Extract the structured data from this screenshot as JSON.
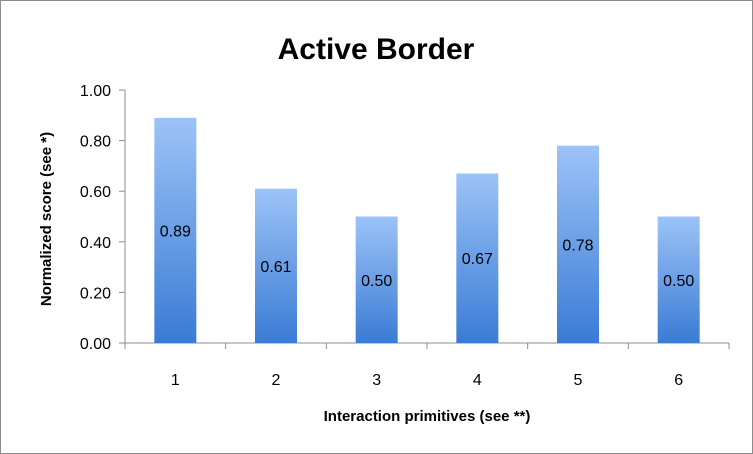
{
  "chart_data": {
    "type": "bar",
    "title": "Active Border",
    "xlabel": "Interaction primitives (see **)",
    "ylabel": "Normalized score (see *)",
    "categories": [
      "1",
      "2",
      "3",
      "4",
      "5",
      "6"
    ],
    "values": [
      0.89,
      0.61,
      0.5,
      0.67,
      0.78,
      0.5
    ],
    "data_labels": [
      "0.89",
      "0.61",
      "0.50",
      "0.67",
      "0.78",
      "0.50"
    ],
    "ylim": [
      0,
      1
    ],
    "yticks": [
      "0.00",
      "0.20",
      "0.40",
      "0.60",
      "0.80",
      "1.00"
    ],
    "grid": false,
    "legend": "none",
    "colors": {
      "bar_top": "#9cc3f7",
      "bar_bottom": "#3a7bd5",
      "axis": "#8c8c8c"
    }
  }
}
